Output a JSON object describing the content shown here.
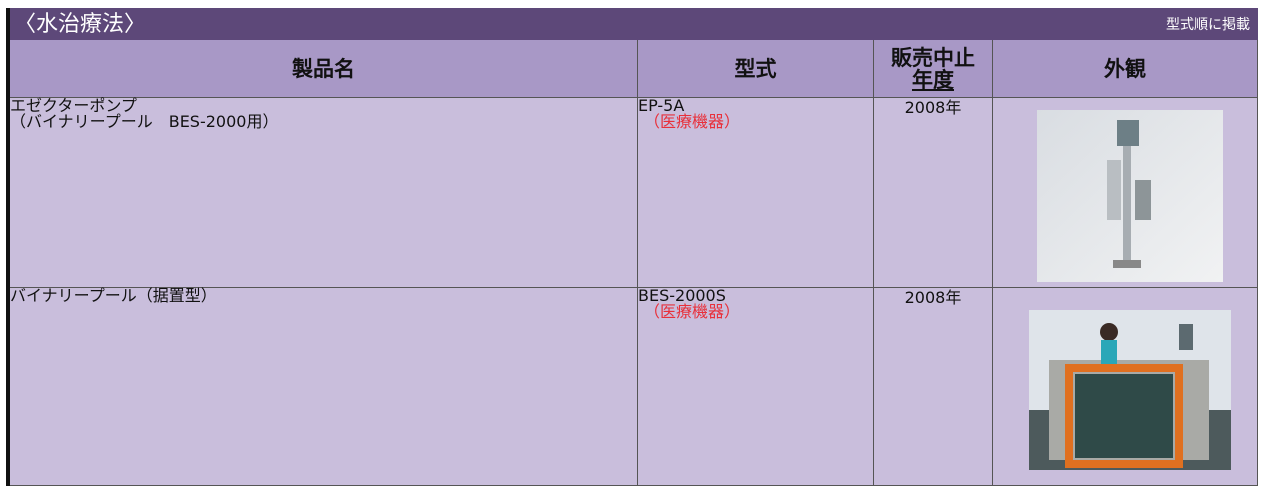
{
  "header": {
    "title": "〈水治療法〉",
    "note": "型式順に掲載"
  },
  "table": {
    "columns": [
      "製品名",
      "型式",
      [
        "販売中止",
        "年度"
      ],
      "外観"
    ],
    "rows": [
      {
        "name": [
          "エゼクターポンプ",
          "（バイナリープール　BES-2000用）"
        ],
        "model": "EP-5A",
        "model_note": "（医療機器）",
        "year": "2008年"
      },
      {
        "name": [
          "バイナリープール（据置型）"
        ],
        "model": "BES-2000S",
        "model_note": "（医療機器）",
        "year": "2008年"
      }
    ]
  }
}
